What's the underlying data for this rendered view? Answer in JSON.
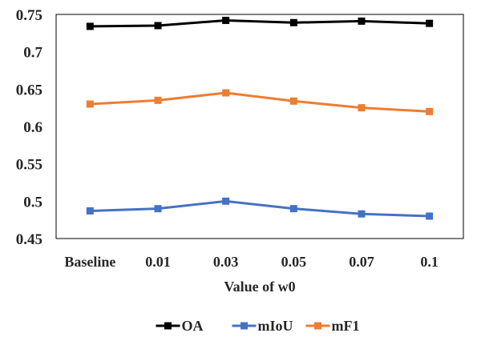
{
  "chart_data": {
    "type": "line",
    "title": "",
    "xlabel": "Value of w0",
    "ylabel": "",
    "categories": [
      "Baseline",
      "0.01",
      "0.03",
      "0.05",
      "0.07",
      "0.1"
    ],
    "ylim": [
      0.45,
      0.75
    ],
    "yticks": [
      "0.45",
      "0.5",
      "0.55",
      "0.6",
      "0.65",
      "0.7",
      "0.75"
    ],
    "grid": false,
    "legend_position": "bottom",
    "series": [
      {
        "name": "OA",
        "color": "#000000",
        "marker": "square",
        "values": [
          0.734,
          0.735,
          0.742,
          0.739,
          0.741,
          0.738
        ]
      },
      {
        "name": "mIoU",
        "color": "#4472C4",
        "marker": "square",
        "values": [
          0.487,
          0.49,
          0.5,
          0.49,
          0.483,
          0.48
        ]
      },
      {
        "name": "mF1",
        "color": "#ED7D31",
        "marker": "square",
        "values": [
          0.63,
          0.635,
          0.645,
          0.634,
          0.625,
          0.62
        ]
      }
    ]
  }
}
